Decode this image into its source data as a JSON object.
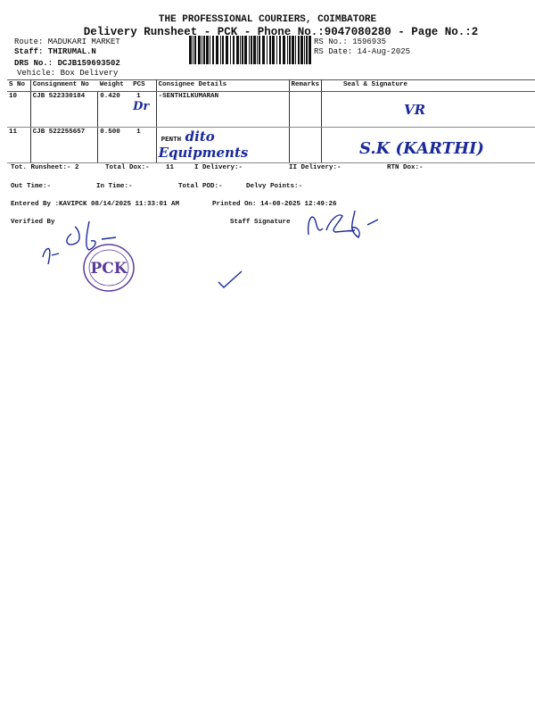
{
  "header": {
    "company": "THE PROFESSIONAL COURIERS, COIMBATORE",
    "subtitle": "Delivery Runsheet - PCK - Phone No.:9047080280 - Page No.:2",
    "route": "Route: MADUKARI MARKET",
    "staff": "Staff: THIRUMAL.N",
    "drs_no": "DRS No.: DCJB159693502",
    "vehicle": "Vehicle: Box Delivery",
    "rs_no": "RS No.: 1596935",
    "rs_date": "RS Date: 14-Aug-2025"
  },
  "table": {
    "columns": [
      "S No",
      "Consignment No",
      "Weight",
      "PCS",
      "Consignee Details",
      "Remarks",
      "Seal & Signature"
    ],
    "rows": [
      {
        "sno": "10",
        "consignment": "CJB 522330184",
        "weight": "0.420",
        "pcs": "1",
        "consignee": "-SENTHILKUMARAN",
        "handwritten": "Dr",
        "remarks": "",
        "signature": "VR"
      },
      {
        "sno": "11",
        "consignment": "CJB 522255657",
        "weight": "0.500",
        "pcs": "1",
        "consignee": "PENTH",
        "handwritten": "dito Equipments",
        "remarks": "",
        "signature": "S.K (KARTHI)"
      }
    ]
  },
  "totals": {
    "tot_runsheet": "Tot. Runsheet:- 2",
    "total_dox": "Total Dox:-",
    "total_dox_value": "11",
    "i_delivery": "I Delivery:-",
    "ii_delivery": "II Delivery:-",
    "rtn_dox": "RTN Dox:-",
    "out_time": "Out Time:-",
    "in_time": "In Time:-",
    "total_pod": "Total POD:-",
    "delvy_points": "Delvy Points:-"
  },
  "footer": {
    "entered_by": "Entered By :KAVIPCK 08/14/2025 11:33:01 AM",
    "printed_on": "Printed On: 14-08-2025 12:49:26",
    "verified_by": "Verified By",
    "staff_signature": "Staff Signature",
    "stamp_text": "PCK"
  },
  "colors": {
    "ink": "#1a2a9a",
    "stamp": "#5a3a9a"
  }
}
